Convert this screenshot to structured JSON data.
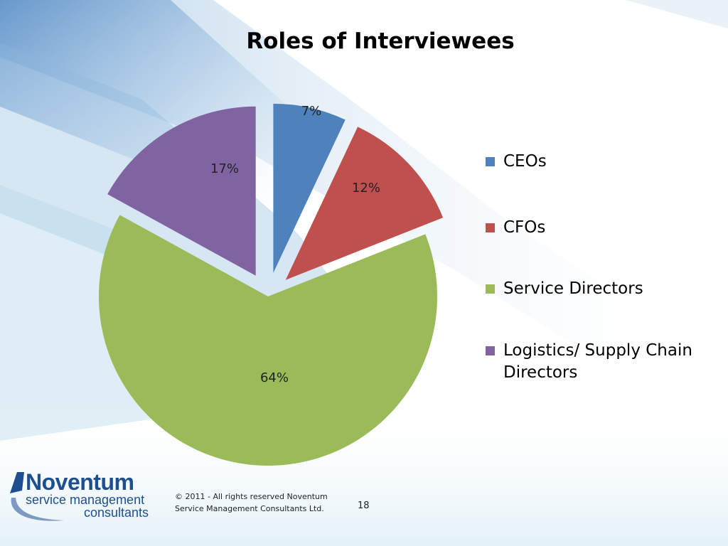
{
  "slide": {
    "title": "Roles of Interviewees",
    "page_number": "18"
  },
  "footer": {
    "copyright_line1": "© 2011 - All rights reserved Noventum",
    "copyright_line2": "Service Management Consultants Ltd."
  },
  "logo": {
    "name": "Noventum",
    "tagline1": "service management",
    "tagline2": "consultants"
  },
  "chart_data": {
    "type": "pie",
    "title": "Roles of Interviewees",
    "exploded": true,
    "start_angle_deg": 0,
    "direction": "clockwise",
    "legend_position": "right",
    "slices": [
      {
        "name": "CEOs",
        "value": 7,
        "label": "7%",
        "color": "#4f81bd"
      },
      {
        "name": "CFOs",
        "value": 12,
        "label": "12%",
        "color": "#c0504d"
      },
      {
        "name": "Service Directors",
        "value": 64,
        "label": "64%",
        "color": "#9bbb59"
      },
      {
        "name": "Logistics/ Supply Chain Directors",
        "value": 17,
        "label": "17%",
        "color": "#8064a2"
      }
    ]
  }
}
